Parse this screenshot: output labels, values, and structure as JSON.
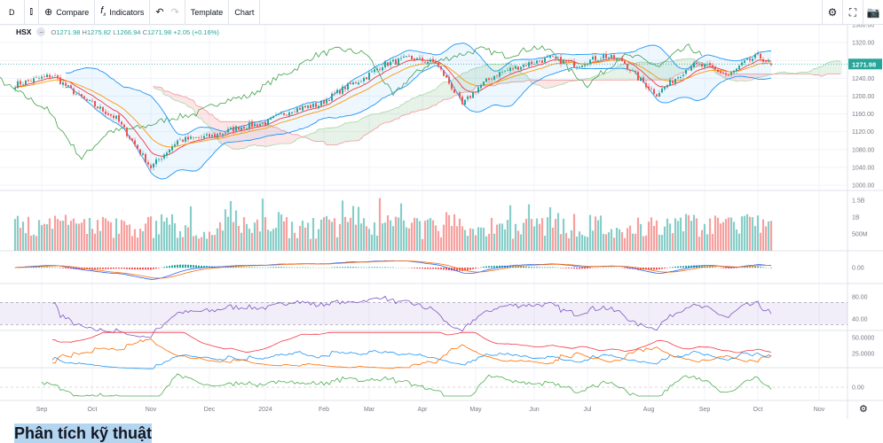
{
  "toolbar": {
    "interval": "D",
    "compare": "Compare",
    "indicators": "Indicators",
    "template": "Template",
    "chart": "Chart"
  },
  "legend": {
    "symbol": "HSX",
    "o_label": "O",
    "o": "1271.98",
    "h_label": "H",
    "h": "1275.82",
    "l_label": "L",
    "l": "1266.94",
    "c_label": "C",
    "c": "1271.98",
    "change": "+2.05 (+0.16%)"
  },
  "last_price": "1271.98",
  "colors": {
    "up": "#26a69a",
    "down": "#ef5350",
    "bb": "#2196f3",
    "rsi": "#7e57c2",
    "lagging": "#43a047"
  },
  "chart_data": {
    "type": "candlestick",
    "symbol": "HSX",
    "price_ticks": [
      "1360.00",
      "1320.00",
      "1280.00",
      "1240.00",
      "1200.00",
      "1160.00",
      "1120.00",
      "1080.00",
      "1040.00",
      "1000.00"
    ],
    "price_values": [
      1360,
      1320,
      1280,
      1240,
      1200,
      1160,
      1120,
      1080,
      1040,
      1000
    ],
    "volume_ticks": [
      "1.5B",
      "1B",
      "500M"
    ],
    "macd_ticks": [
      "0.00"
    ],
    "rsi_ticks": [
      "80.00",
      "40.00"
    ],
    "dmi_ticks": [
      "50.0000",
      "25.0000"
    ],
    "osc_ticks": [
      "0.00"
    ],
    "x_labels": [
      "Sep",
      "Oct",
      "Nov",
      "Dec",
      "2024",
      "Feb",
      "Mar",
      "Apr",
      "May",
      "Jun",
      "Jul",
      "Aug",
      "Sep",
      "Oct",
      "Nov"
    ],
    "x_label_day_index": [
      10,
      29,
      51,
      73,
      94,
      116,
      133,
      153,
      173,
      195,
      215,
      238,
      259,
      279,
      302
    ],
    "close_keypoints": [
      [
        0,
        1226
      ],
      [
        14,
        1247
      ],
      [
        24,
        1200
      ],
      [
        38,
        1150
      ],
      [
        51,
        1040
      ],
      [
        61,
        1100
      ],
      [
        74,
        1110
      ],
      [
        84,
        1130
      ],
      [
        94,
        1140
      ],
      [
        104,
        1170
      ],
      [
        114,
        1180
      ],
      [
        124,
        1220
      ],
      [
        131,
        1240
      ],
      [
        138,
        1270
      ],
      [
        148,
        1285
      ],
      [
        158,
        1275
      ],
      [
        164,
        1220
      ],
      [
        168,
        1180
      ],
      [
        174,
        1220
      ],
      [
        181,
        1250
      ],
      [
        191,
        1270
      ],
      [
        201,
        1285
      ],
      [
        211,
        1270
      ],
      [
        221,
        1290
      ],
      [
        228,
        1280
      ],
      [
        234,
        1240
      ],
      [
        241,
        1205
      ],
      [
        248,
        1240
      ],
      [
        254,
        1270
      ],
      [
        261,
        1265
      ],
      [
        268,
        1245
      ],
      [
        274,
        1275
      ],
      [
        279,
        1290
      ],
      [
        284,
        1271.98
      ]
    ]
  },
  "footer": {
    "heading": "Phân tích kỹ thuật"
  }
}
